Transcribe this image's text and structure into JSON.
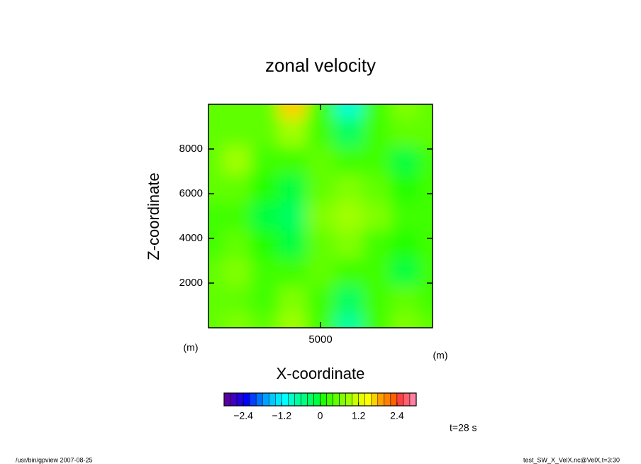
{
  "chart_data": {
    "type": "contour",
    "title": "zonal velocity",
    "xlabel": "X-coordinate",
    "ylabel": "Z-coordinate",
    "xunit": "(m)",
    "yunit": "(m)",
    "annotation": "t=28 s",
    "footer_left": "/usr/bin/gpview  2007-08-25",
    "footer_right": "test_SW_X_VelX.nc@VelX,t=3:30",
    "xlim": [
      0,
      10000
    ],
    "ylim": [
      0,
      10000
    ],
    "xticks": [
      5000
    ],
    "yticks": [
      2000,
      4000,
      6000,
      8000
    ],
    "x": [
      0,
      1250,
      2500,
      3750,
      5000,
      6250,
      7500,
      8750,
      10000
    ],
    "y": [
      0,
      1250,
      2500,
      3750,
      5000,
      6250,
      7500,
      8750,
      10000
    ],
    "z": [
      [
        0.5,
        0.6,
        0.4,
        0.9,
        0.3,
        -0.7,
        0.2,
        0.7,
        0.5
      ],
      [
        0.4,
        0.5,
        0.3,
        0.7,
        0.3,
        -0.3,
        0.2,
        0.5,
        0.3
      ],
      [
        0.5,
        0.7,
        0.3,
        0.2,
        0.4,
        0.3,
        0.2,
        -0.1,
        0.2
      ],
      [
        0.3,
        0.4,
        0.1,
        -0.1,
        0.5,
        0.6,
        0.3,
        0.1,
        0.2
      ],
      [
        0.2,
        0.2,
        -0.2,
        -0.3,
        0.6,
        0.9,
        0.6,
        0.3,
        0.3
      ],
      [
        0.4,
        0.5,
        0.1,
        -0.1,
        0.5,
        0.7,
        0.4,
        0.1,
        0.2
      ],
      [
        0.5,
        0.8,
        0.3,
        0.2,
        0.4,
        0.3,
        0.2,
        -0.2,
        0.2
      ],
      [
        0.4,
        0.5,
        0.4,
        0.9,
        0.3,
        -0.3,
        0.3,
        0.5,
        0.4
      ],
      [
        0.4,
        0.5,
        0.5,
        1.6,
        0.3,
        -1.0,
        0.3,
        0.7,
        0.5
      ]
    ],
    "levels": [
      -3,
      -2.8,
      -2.6,
      -2.4,
      -2.2,
      -2,
      -1.8,
      -1.6,
      -1.4,
      -1.2,
      -1,
      -0.8,
      -0.6,
      -0.4,
      -0.2,
      0,
      0.2,
      0.4,
      0.6,
      0.8,
      1,
      1.2,
      1.4,
      1.6,
      1.8,
      2,
      2.2,
      2.4,
      2.6,
      2.8,
      3
    ],
    "colormap": [
      "#5a00a0",
      "#4000c0",
      "#2000e0",
      "#0000ff",
      "#0040ff",
      "#0070ff",
      "#00a0ff",
      "#00c8ff",
      "#00e6ff",
      "#00ffff",
      "#00ffd0",
      "#00ffa0",
      "#00ff80",
      "#00ff60",
      "#00ff40",
      "#20ff00",
      "#40ff00",
      "#60ff00",
      "#80ff00",
      "#a0ff00",
      "#c8ff00",
      "#e6ff00",
      "#ffff00",
      "#ffd000",
      "#ffa000",
      "#ff8000",
      "#ff6000",
      "#ff4040",
      "#ff6070",
      "#ff80a0"
    ],
    "cticks": [
      {
        "value": -2.4,
        "label": "−2.4"
      },
      {
        "value": -1.2,
        "label": "−1.2"
      },
      0,
      1.2,
      2.4
    ]
  }
}
